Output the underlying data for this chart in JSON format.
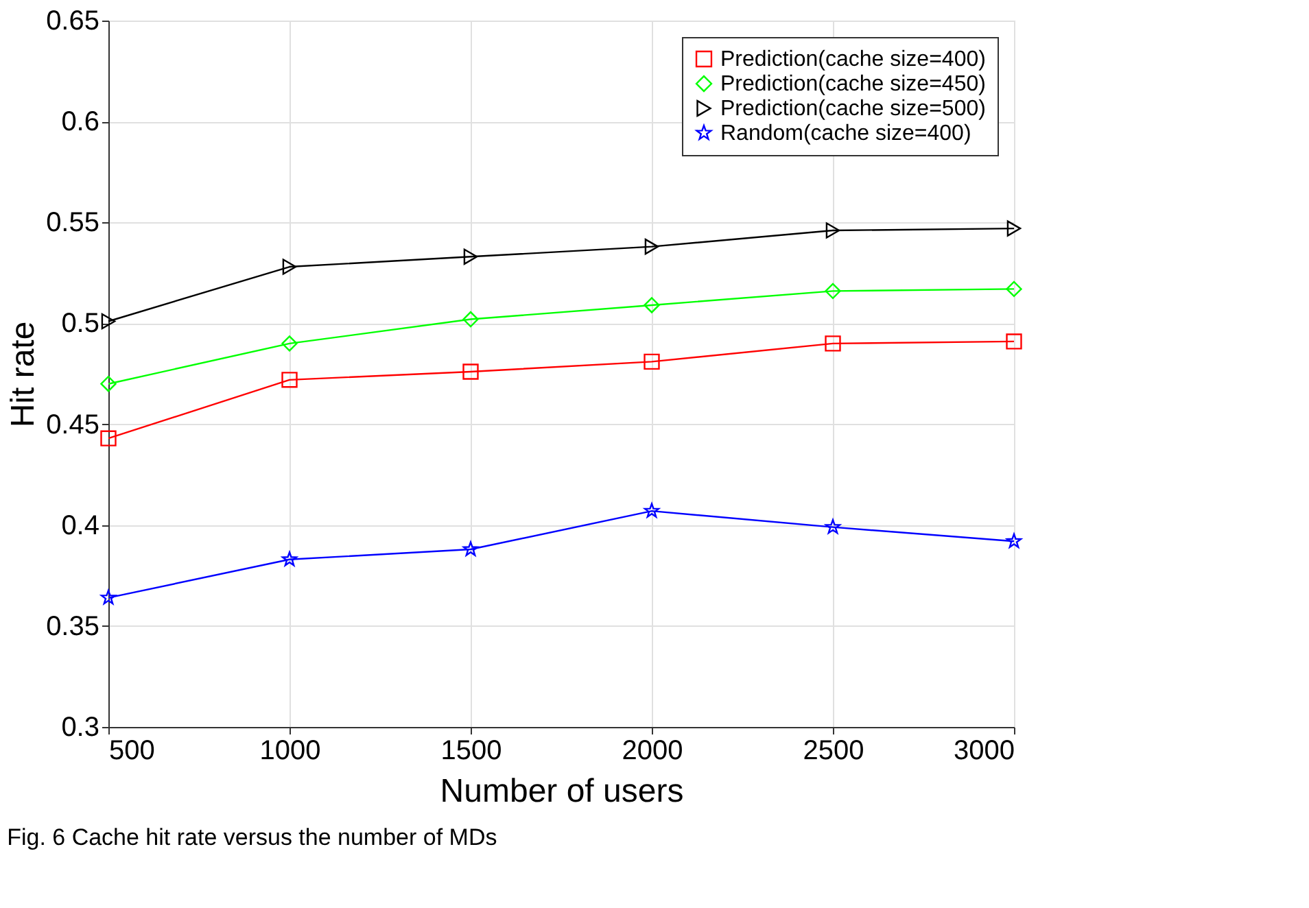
{
  "chart_data": {
    "type": "line",
    "xlabel": "Number of users",
    "ylabel": "Hit rate",
    "x": [
      500,
      1000,
      1500,
      2000,
      2500,
      3000
    ],
    "xlim": [
      500,
      3000
    ],
    "xticks": [
      500,
      1000,
      1500,
      2000,
      2500,
      3000
    ],
    "ylim": [
      0.3,
      0.65
    ],
    "yticks": [
      0.3,
      0.35,
      0.4,
      0.45,
      0.5,
      0.55,
      0.6,
      0.65
    ],
    "grid": true,
    "legend": "top right",
    "line_style": "solid",
    "series": [
      {
        "name": "Prediction(cache size=400)",
        "color": "#ff0000",
        "marker": "square",
        "values": [
          0.443,
          0.472,
          0.476,
          0.481,
          0.49,
          0.491
        ]
      },
      {
        "name": "Prediction(cache size=450)",
        "color": "#00ff00",
        "marker": "diamond",
        "values": [
          0.47,
          0.49,
          0.502,
          0.509,
          0.516,
          0.517
        ]
      },
      {
        "name": "Prediction(cache size=500)",
        "color": "#000000",
        "marker": "triangle-right",
        "values": [
          0.501,
          0.528,
          0.533,
          0.538,
          0.546,
          0.547
        ]
      },
      {
        "name": "Random(cache size=400)",
        "color": "#0000ff",
        "marker": "star",
        "values": [
          0.364,
          0.383,
          0.388,
          0.407,
          0.399,
          0.392
        ]
      }
    ],
    "annotations": [
      "Fig. 6  Cache hit rate versus the number of MDs"
    ]
  }
}
